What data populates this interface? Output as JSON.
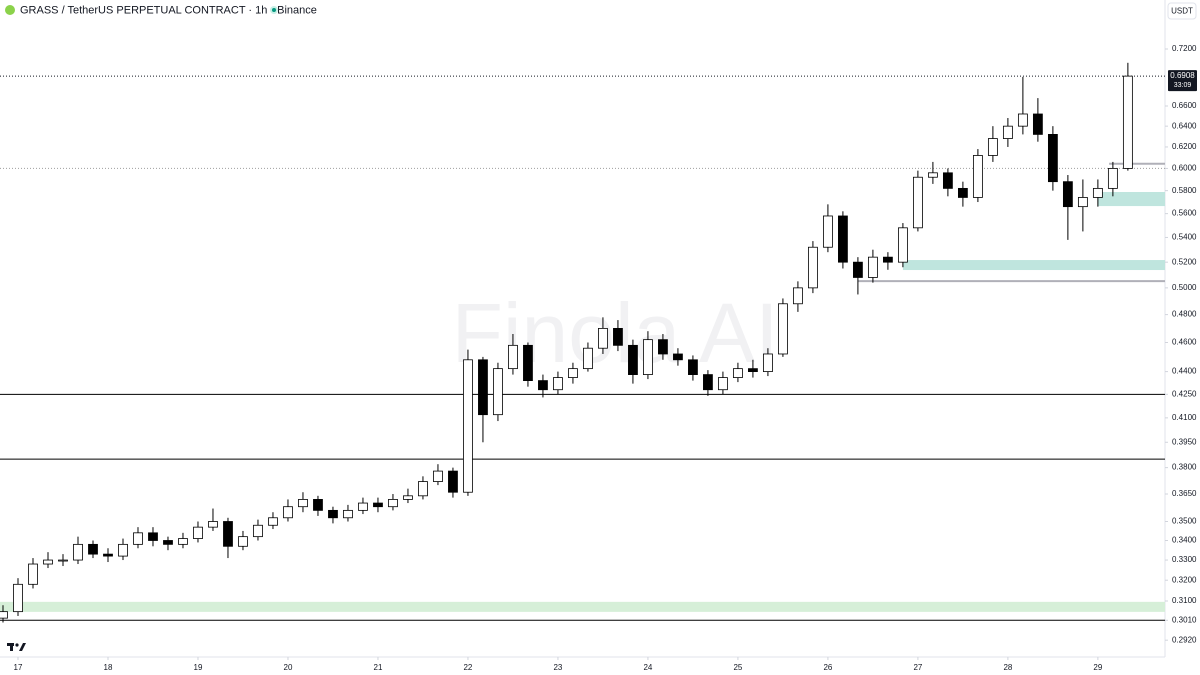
{
  "chart_data": {
    "type": "candlestick",
    "title": "GRASS / TetherUS PERPETUAL CONTRACT · 1h · Binance",
    "currency": "USDT",
    "watermark": "Finola AI",
    "log_scale": true,
    "up_color": "#ffffff",
    "down_color": "#000000",
    "x": [
      -4,
      0,
      4,
      8,
      12,
      16,
      20,
      24,
      28,
      32,
      36,
      40,
      44,
      48,
      52,
      56,
      60,
      64,
      68,
      72,
      76,
      80,
      84,
      88,
      92,
      96,
      100,
      104,
      108,
      112,
      116,
      120,
      124,
      128,
      132,
      136,
      140,
      144,
      148,
      152,
      156,
      160,
      164,
      168,
      172,
      176,
      180,
      184,
      188,
      192,
      196,
      200,
      204,
      208,
      212,
      216,
      220,
      224,
      228,
      232,
      236,
      240,
      244,
      248,
      252,
      256,
      260,
      264,
      268,
      272,
      276,
      280,
      284,
      288,
      292,
      296
    ],
    "open": [
      0.302,
      0.305,
      0.318,
      0.328,
      0.33,
      0.33,
      0.338,
      0.333,
      0.332,
      0.338,
      0.344,
      0.34,
      0.338,
      0.341,
      0.347,
      0.35,
      0.337,
      0.342,
      0.348,
      0.352,
      0.358,
      0.362,
      0.356,
      0.352,
      0.356,
      0.36,
      0.358,
      0.362,
      0.364,
      0.372,
      0.378,
      0.366,
      0.448,
      0.412,
      0.442,
      0.458,
      0.434,
      0.428,
      0.436,
      0.442,
      0.456,
      0.47,
      0.458,
      0.438,
      0.462,
      0.452,
      0.448,
      0.438,
      0.428,
      0.436,
      0.442,
      0.44,
      0.452,
      0.488,
      0.5,
      0.532,
      0.558,
      0.52,
      0.508,
      0.524,
      0.52,
      0.548,
      0.592,
      0.596,
      0.582,
      0.574,
      0.612,
      0.628,
      0.64,
      0.652,
      0.632,
      0.588,
      0.566,
      0.574,
      0.582,
      0.6
    ],
    "high": [
      0.308,
      0.321,
      0.331,
      0.334,
      0.333,
      0.342,
      0.34,
      0.336,
      0.341,
      0.347,
      0.347,
      0.342,
      0.344,
      0.35,
      0.357,
      0.352,
      0.345,
      0.351,
      0.355,
      0.362,
      0.366,
      0.364,
      0.358,
      0.359,
      0.363,
      0.363,
      0.365,
      0.368,
      0.375,
      0.382,
      0.38,
      0.455,
      0.45,
      0.446,
      0.466,
      0.46,
      0.438,
      0.44,
      0.446,
      0.46,
      0.478,
      0.476,
      0.462,
      0.468,
      0.466,
      0.456,
      0.451,
      0.441,
      0.44,
      0.446,
      0.448,
      0.456,
      0.492,
      0.505,
      0.537,
      0.568,
      0.562,
      0.524,
      0.53,
      0.528,
      0.552,
      0.598,
      0.606,
      0.6,
      0.588,
      0.618,
      0.64,
      0.648,
      0.69,
      0.668,
      0.64,
      0.594,
      0.59,
      0.59,
      0.606,
      0.705
    ],
    "low": [
      0.3,
      0.303,
      0.316,
      0.326,
      0.327,
      0.328,
      0.331,
      0.329,
      0.33,
      0.336,
      0.337,
      0.335,
      0.336,
      0.339,
      0.345,
      0.331,
      0.335,
      0.34,
      0.346,
      0.35,
      0.355,
      0.353,
      0.349,
      0.35,
      0.354,
      0.355,
      0.356,
      0.36,
      0.362,
      0.37,
      0.363,
      0.364,
      0.395,
      0.408,
      0.438,
      0.43,
      0.423,
      0.425,
      0.432,
      0.44,
      0.452,
      0.454,
      0.432,
      0.435,
      0.448,
      0.444,
      0.434,
      0.424,
      0.425,
      0.433,
      0.436,
      0.437,
      0.45,
      0.482,
      0.496,
      0.528,
      0.515,
      0.495,
      0.504,
      0.514,
      0.516,
      0.545,
      0.586,
      0.575,
      0.566,
      0.57,
      0.606,
      0.62,
      0.632,
      0.625,
      0.58,
      0.538,
      0.545,
      0.566,
      0.575,
      0.598
    ],
    "close": [
      0.305,
      0.318,
      0.328,
      0.33,
      0.33,
      0.338,
      0.333,
      0.332,
      0.338,
      0.344,
      0.34,
      0.338,
      0.341,
      0.347,
      0.35,
      0.337,
      0.342,
      0.348,
      0.352,
      0.358,
      0.362,
      0.356,
      0.352,
      0.356,
      0.36,
      0.358,
      0.362,
      0.364,
      0.372,
      0.378,
      0.366,
      0.448,
      0.412,
      0.442,
      0.458,
      0.434,
      0.428,
      0.436,
      0.442,
      0.456,
      0.47,
      0.458,
      0.438,
      0.462,
      0.452,
      0.448,
      0.438,
      0.428,
      0.436,
      0.442,
      0.44,
      0.452,
      0.488,
      0.5,
      0.532,
      0.558,
      0.52,
      0.508,
      0.524,
      0.52,
      0.548,
      0.592,
      0.596,
      0.582,
      0.574,
      0.612,
      0.628,
      0.64,
      0.652,
      0.632,
      0.588,
      0.566,
      0.574,
      0.582,
      0.6,
      0.6908
    ],
    "xlim": [
      -4.8,
      305.9
    ],
    "ylim": [
      0.2846,
      0.7526
    ],
    "xticks": [
      {
        "value": 0,
        "label": "17"
      },
      {
        "value": 24,
        "label": "18"
      },
      {
        "value": 48,
        "label": "19"
      },
      {
        "value": 72,
        "label": "20"
      },
      {
        "value": 96,
        "label": "21"
      },
      {
        "value": 120,
        "label": "22"
      },
      {
        "value": 144,
        "label": "23"
      },
      {
        "value": 168,
        "label": "24"
      },
      {
        "value": 192,
        "label": "25"
      },
      {
        "value": 216,
        "label": "26"
      },
      {
        "value": 240,
        "label": "27"
      },
      {
        "value": 264,
        "label": "28"
      },
      {
        "value": 288,
        "label": "29"
      }
    ],
    "yticks": [
      {
        "value": 0.292,
        "label": "0.2920"
      },
      {
        "value": 0.301,
        "label": "0.3010"
      },
      {
        "value": 0.31,
        "label": "0.3100"
      },
      {
        "value": 0.32,
        "label": "0.3200"
      },
      {
        "value": 0.33,
        "label": "0.3300"
      },
      {
        "value": 0.34,
        "label": "0.3400"
      },
      {
        "value": 0.35,
        "label": "0.3500"
      },
      {
        "value": 0.365,
        "label": "0.3650"
      },
      {
        "value": 0.38,
        "label": "0.3800"
      },
      {
        "value": 0.395,
        "label": "0.3950"
      },
      {
        "value": 0.41,
        "label": "0.4100"
      },
      {
        "value": 0.425,
        "label": "0.4250"
      },
      {
        "value": 0.44,
        "label": "0.4400"
      },
      {
        "value": 0.46,
        "label": "0.4600"
      },
      {
        "value": 0.48,
        "label": "0.4800"
      },
      {
        "value": 0.5,
        "label": "0.5000"
      },
      {
        "value": 0.52,
        "label": "0.5200"
      },
      {
        "value": 0.54,
        "label": "0.5400"
      },
      {
        "value": 0.56,
        "label": "0.5600"
      },
      {
        "value": 0.58,
        "label": "0.5800"
      },
      {
        "value": 0.6,
        "label": "0.6000"
      },
      {
        "value": 0.62,
        "label": "0.6200"
      },
      {
        "value": 0.64,
        "label": "0.6400"
      },
      {
        "value": 0.66,
        "label": "0.6600"
      },
      {
        "value": 0.72,
        "label": "0.7200"
      }
    ],
    "current_price": {
      "value": 0.6908,
      "label": "0.6908"
    },
    "countdown": "33:09",
    "levels": [
      {
        "value": 0.6,
        "x_start": -4.8,
        "style": "dotted",
        "color": "#9e9e9e"
      },
      {
        "value": 0.425,
        "x_start": -4.8,
        "style": "solid",
        "color": "#000000"
      },
      {
        "value": 0.385,
        "x_start": -4.8,
        "style": "solid",
        "color": "#000000"
      },
      {
        "value": 0.301,
        "x_start": -4.8,
        "style": "solid",
        "color": "#000000"
      },
      {
        "value": 0.5052,
        "x_start": 224,
        "style": "solid",
        "color": "#b0b0b8"
      },
      {
        "value": 0.6043,
        "x_start": 291,
        "style": "solid",
        "color": "#b0b0b8"
      }
    ],
    "zones": [
      {
        "low": 0.3049,
        "high": 0.3096,
        "x_start": -4.8,
        "color": "#d6efd8"
      },
      {
        "low": 0.5138,
        "high": 0.5217,
        "x_start": 236,
        "color": "#bfe5de"
      },
      {
        "low": 0.5665,
        "high": 0.5788,
        "x_start": 288,
        "color": "#bfe5de"
      }
    ]
  }
}
